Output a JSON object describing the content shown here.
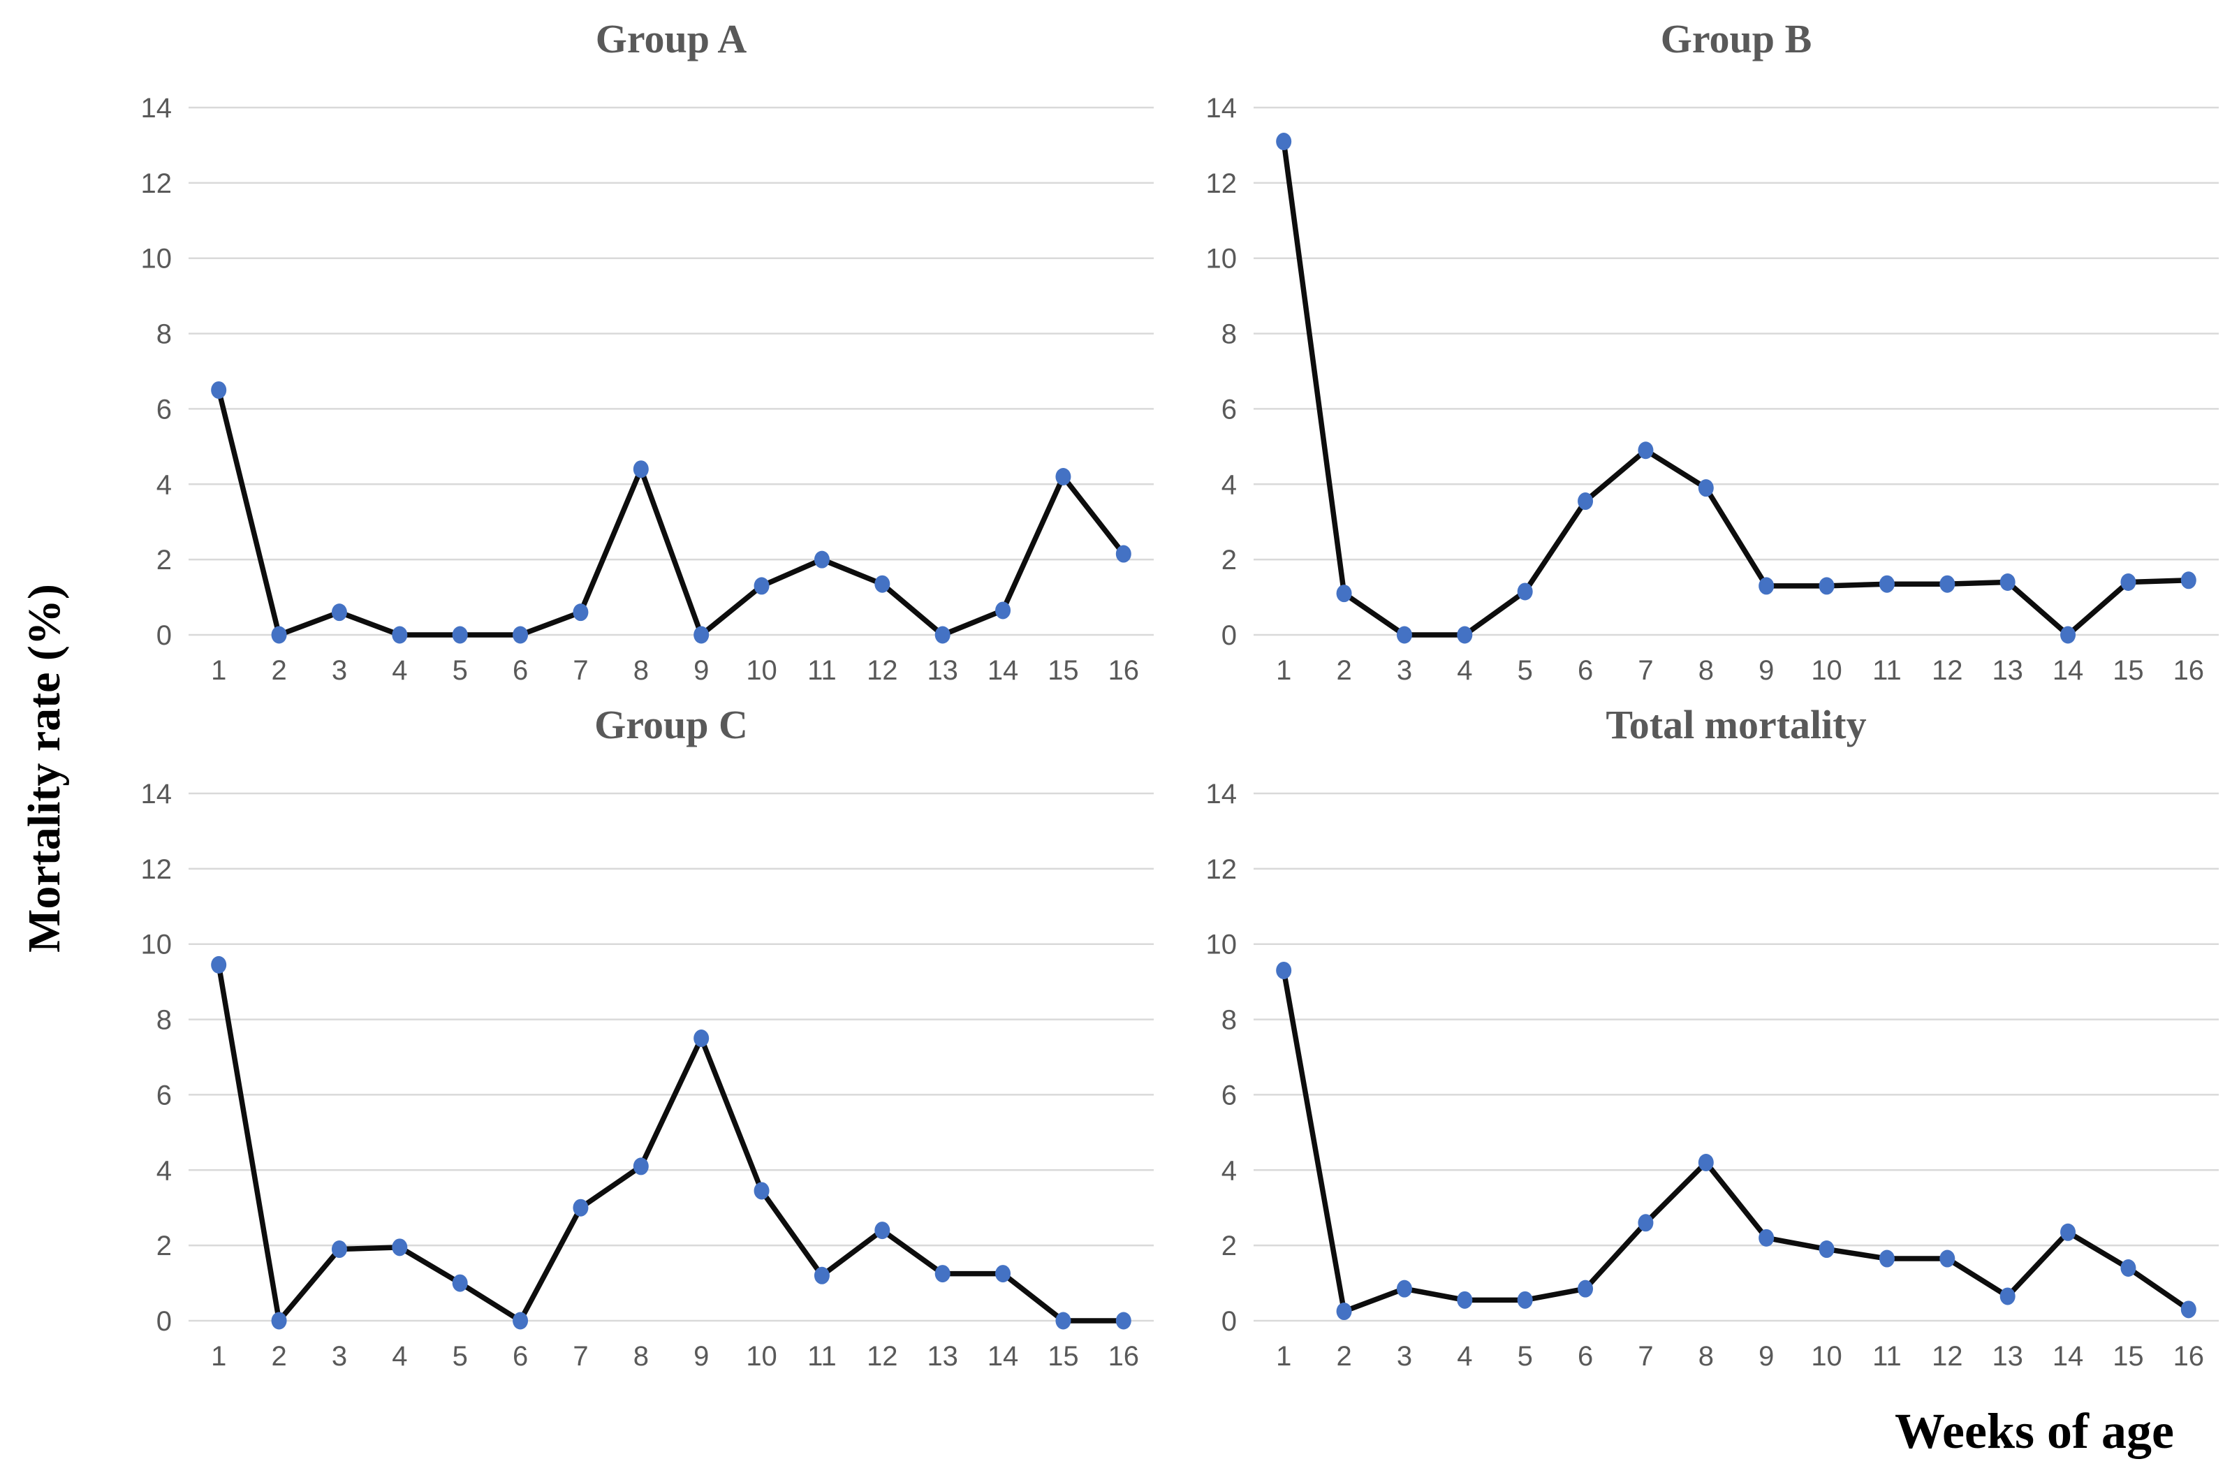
{
  "figure": {
    "y_axis_label": "Mortality rate (%)",
    "x_axis_label": "Weeks of age"
  },
  "style": {
    "marker_color": "#4472c4",
    "line_color": "#0d0d0d",
    "grid_color": "#d9d9d9",
    "tick_label_color": "#595959",
    "title_color": "#595959",
    "background": "#ffffff"
  },
  "chart_data": [
    {
      "type": "line",
      "title": "Group A",
      "categories": [
        "1",
        "2",
        "3",
        "4",
        "5",
        "6",
        "7",
        "8",
        "9",
        "10",
        "11",
        "12",
        "13",
        "14",
        "15",
        "16"
      ],
      "values": [
        6.5,
        0,
        0.6,
        0,
        0,
        0,
        0.6,
        4.4,
        0,
        1.3,
        2.0,
        1.35,
        0,
        0.65,
        4.2,
        2.15
      ],
      "xlabel": "Weeks of age",
      "ylabel": "Mortality rate (%)",
      "ylim": [
        0,
        14
      ],
      "y_ticks": [
        0,
        2,
        4,
        6,
        8,
        10,
        12,
        14
      ],
      "grid": "horizontal",
      "legend": "none"
    },
    {
      "type": "line",
      "title": "Group B",
      "categories": [
        "1",
        "2",
        "3",
        "4",
        "5",
        "6",
        "7",
        "8",
        "9",
        "10",
        "11",
        "12",
        "13",
        "14",
        "15",
        "16"
      ],
      "values": [
        13.1,
        1.1,
        0,
        0,
        1.15,
        3.55,
        4.9,
        3.9,
        1.3,
        1.3,
        1.35,
        1.35,
        1.4,
        0,
        1.4,
        1.45
      ],
      "xlabel": "Weeks of age",
      "ylabel": "Mortality rate (%)",
      "ylim": [
        0,
        14
      ],
      "y_ticks": [
        0,
        2,
        4,
        6,
        8,
        10,
        12,
        14
      ],
      "grid": "horizontal",
      "legend": "none"
    },
    {
      "type": "line",
      "title": "Group C",
      "categories": [
        "1",
        "2",
        "3",
        "4",
        "5",
        "6",
        "7",
        "8",
        "9",
        "10",
        "11",
        "12",
        "13",
        "14",
        "15",
        "16"
      ],
      "values": [
        9.45,
        0,
        1.9,
        1.95,
        1.0,
        0,
        3.0,
        4.1,
        7.5,
        3.45,
        1.2,
        2.4,
        1.25,
        1.25,
        0,
        0
      ],
      "xlabel": "Weeks of age",
      "ylabel": "Mortality rate (%)",
      "ylim": [
        0,
        14
      ],
      "y_ticks": [
        0,
        2,
        4,
        6,
        8,
        10,
        12,
        14
      ],
      "grid": "horizontal",
      "legend": "none"
    },
    {
      "type": "line",
      "title": "Total mortality",
      "categories": [
        "1",
        "2",
        "3",
        "4",
        "5",
        "6",
        "7",
        "8",
        "9",
        "10",
        "11",
        "12",
        "13",
        "14",
        "15",
        "16"
      ],
      "values": [
        9.3,
        0.25,
        0.85,
        0.55,
        0.55,
        0.85,
        2.6,
        4.2,
        2.2,
        1.9,
        1.65,
        1.65,
        0.65,
        2.35,
        1.4,
        0.3
      ],
      "xlabel": "Weeks of age",
      "ylabel": "Mortality rate (%)",
      "ylim": [
        0,
        14
      ],
      "y_ticks": [
        0,
        2,
        4,
        6,
        8,
        10,
        12,
        14
      ],
      "grid": "horizontal",
      "legend": "none"
    }
  ]
}
